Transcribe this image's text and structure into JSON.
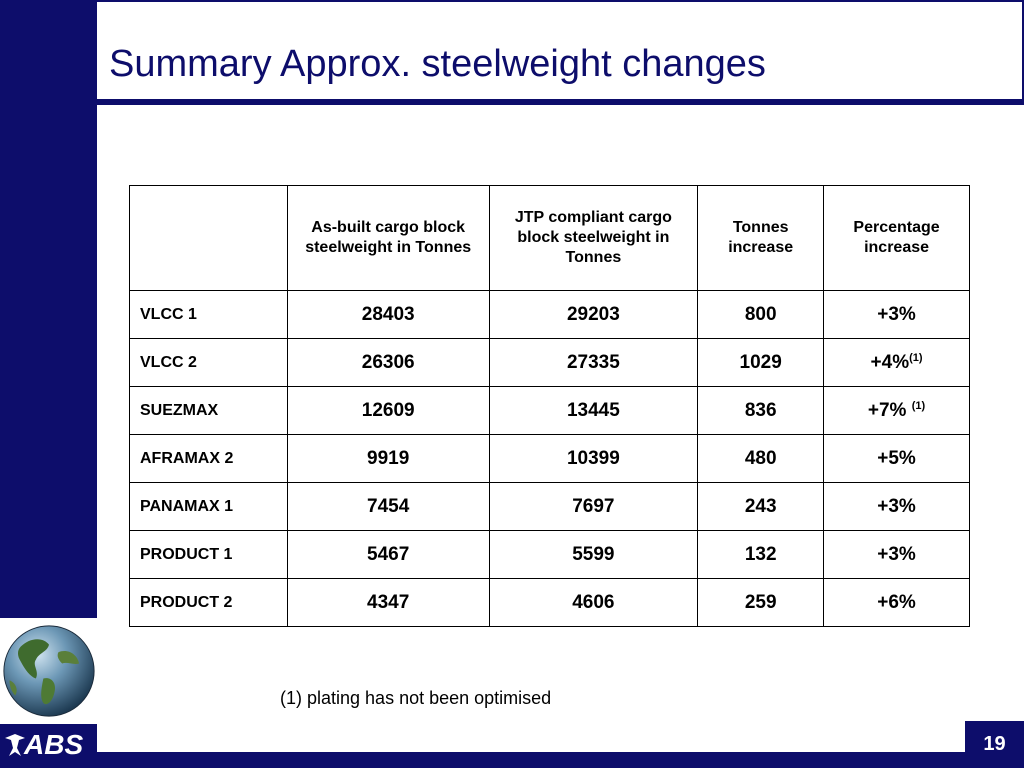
{
  "slide": {
    "title": "Summary Approx. steelweight changes",
    "page_number": "19",
    "logo_text": "ABS",
    "footnote": "(1) plating has not been optimised"
  },
  "table": {
    "columns": [
      "",
      "As-built cargo block steelweight in Tonnes",
      "JTP compliant cargo block steelweight in Tonnes",
      "Tonnes increase",
      "Percentage increase"
    ],
    "rows": [
      {
        "name": "VLCC 1",
        "as_built": "28403",
        "jtp": "29203",
        "tonnes_increase": "800",
        "pct": "+3%",
        "note": ""
      },
      {
        "name": "VLCC 2",
        "as_built": "26306",
        "jtp": "27335",
        "tonnes_increase": "1029",
        "pct": "+4%",
        "note": "(1)"
      },
      {
        "name": "SUEZMAX",
        "as_built": "12609",
        "jtp": "13445",
        "tonnes_increase": "836",
        "pct": "+7% ",
        "note": "(1)"
      },
      {
        "name": "AFRAMAX 2",
        "as_built": "9919",
        "jtp": "10399",
        "tonnes_increase": "480",
        "pct": "+5%",
        "note": ""
      },
      {
        "name": "PANAMAX 1",
        "as_built": "7454",
        "jtp": "7697",
        "tonnes_increase": "243",
        "pct": "+3%",
        "note": ""
      },
      {
        "name": "PRODUCT 1",
        "as_built": "5467",
        "jtp": "5599",
        "tonnes_increase": "132",
        "pct": "+3%",
        "note": ""
      },
      {
        "name": "PRODUCT 2",
        "as_built": "4347",
        "jtp": "4606",
        "tonnes_increase": "259",
        "pct": "+6%",
        "note": ""
      }
    ]
  },
  "colors": {
    "brand_navy": "#0d0d6b",
    "text": "#000000"
  },
  "icons": {
    "globe": "globe-icon",
    "logo": "abs-eagle-icon"
  }
}
